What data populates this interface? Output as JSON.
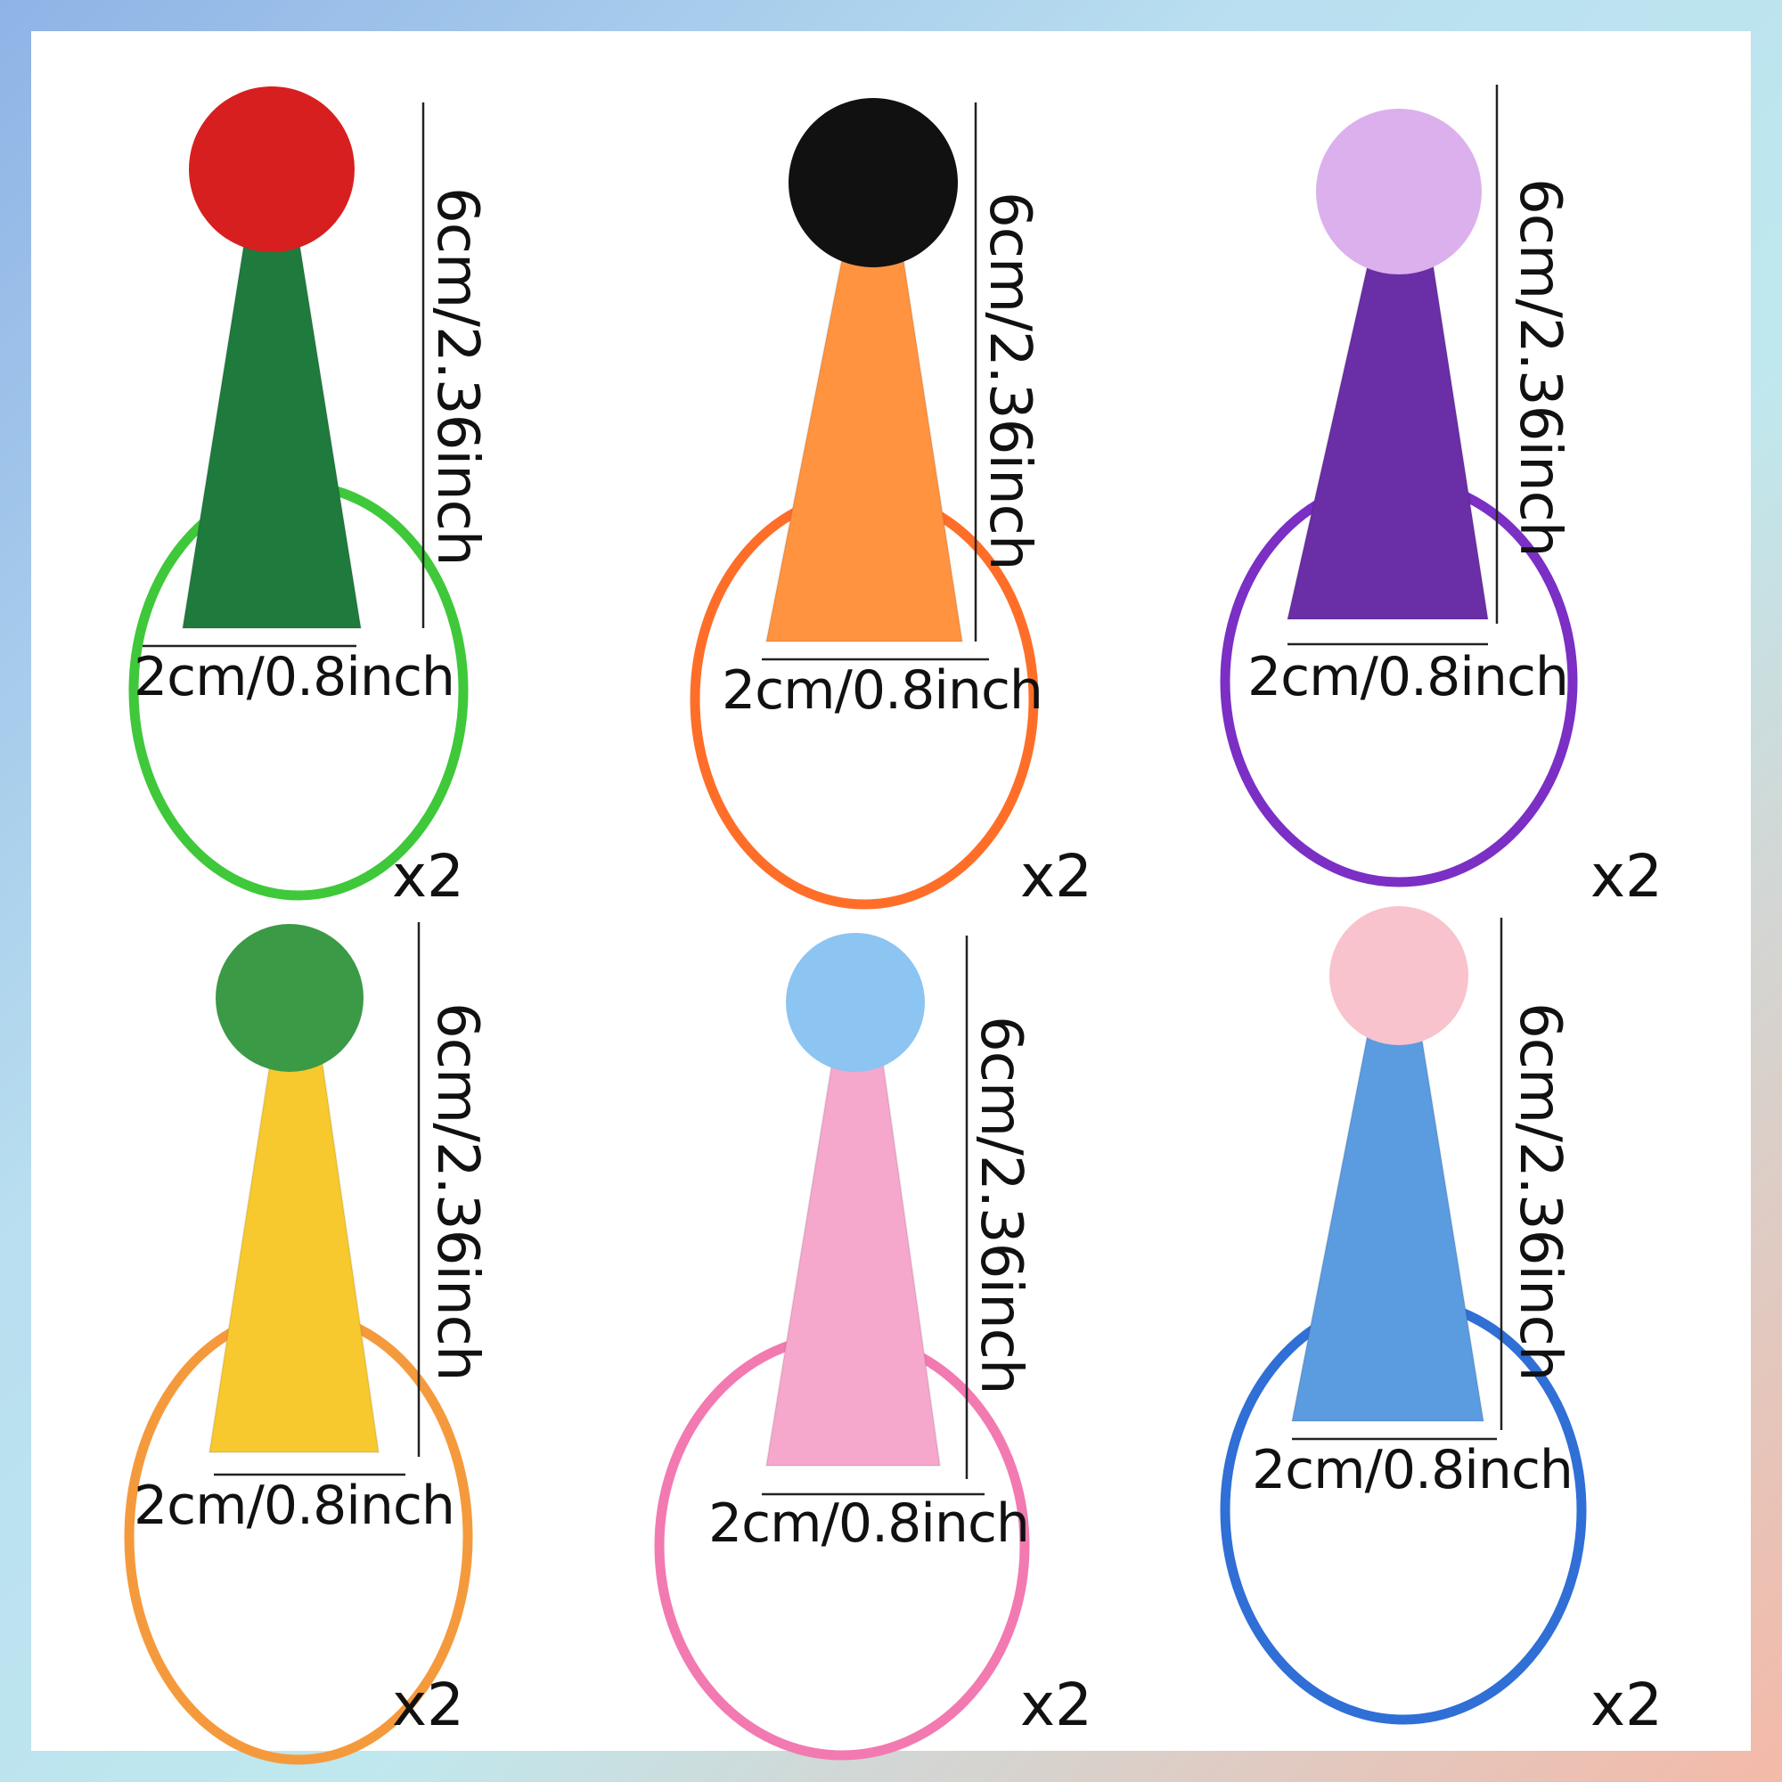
{
  "items": [
    {
      "height_label": "6cm/2.36inch",
      "width_label": "2cm/0.8inch",
      "qty_label": "x2",
      "pompom_color": "#d81f1f",
      "hat_color": "#1f7a3d",
      "band_color": "#3fc83a"
    },
    {
      "height_label": "6cm/2.36inch",
      "width_label": "2cm/0.8inch",
      "qty_label": "x2",
      "pompom_color": "#111111",
      "hat_color": "#ff9340",
      "band_color": "#ff6e28"
    },
    {
      "height_label": "6cm/2.36inch",
      "width_label": "2cm/0.8inch",
      "qty_label": "x2",
      "pompom_color": "#dcb0ec",
      "hat_color": "#6a2ea6",
      "band_color": "#7b2fc4"
    },
    {
      "height_label": "6cm/2.36inch",
      "width_label": "2cm/0.8inch",
      "qty_label": "x2",
      "pompom_color": "#3b9a45",
      "hat_color": "#f7c92e",
      "band_color": "#f59a3c"
    },
    {
      "height_label": "6cm/2.36inch",
      "width_label": "2cm/0.8inch",
      "qty_label": "x2",
      "pompom_color": "#8cc4f2",
      "hat_color": "#f6a7cc",
      "band_color": "#f27ab0"
    },
    {
      "height_label": "6cm/2.36inch",
      "width_label": "2cm/0.8inch",
      "qty_label": "x2",
      "pompom_color": "#f8c3cc",
      "hat_color": "#5b9be0",
      "band_color": "#2f6fd6"
    }
  ]
}
